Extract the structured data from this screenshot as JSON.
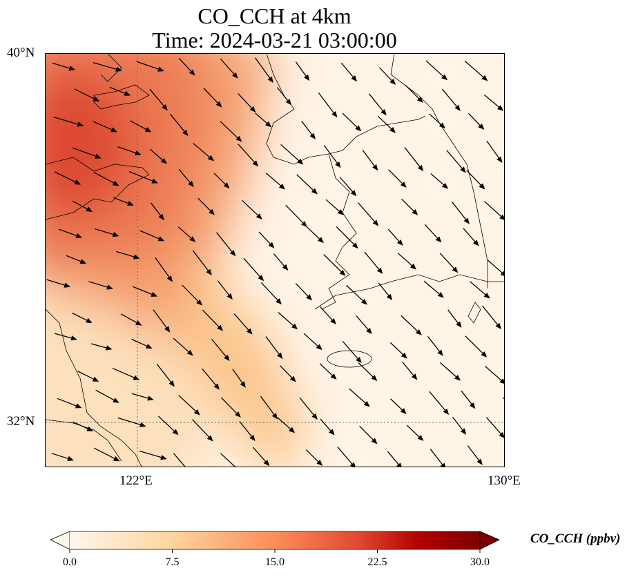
{
  "title": {
    "line1": "CO_CCH at 4km",
    "line2": "Time: 2024-03-21 03:00:00"
  },
  "axes": {
    "lat_labels": [
      "40°N",
      "32°N"
    ],
    "lon_labels": [
      "122°E",
      "130°E"
    ],
    "extent": {
      "lon": [
        120,
        130
      ],
      "lat": [
        31,
        40
      ]
    }
  },
  "colorbar": {
    "label": "CO_CCH (ppbv)",
    "ticks": [
      "0.0",
      "7.5",
      "15.0",
      "22.5",
      "30.0"
    ],
    "range": [
      0,
      30
    ],
    "extend": "both",
    "colors": [
      "#fff7ec",
      "#fdd49e",
      "#fc8d59",
      "#d7301f",
      "#b30000",
      "#7f0000"
    ]
  },
  "chart_data": {
    "type": "heatmap",
    "title": "CO_CCH at 4km / Time: 2024-03-21 03:00:00",
    "variable": "CO_CCH (ppbv)",
    "xlim": [
      120,
      130
    ],
    "ylim": [
      31,
      40
    ],
    "notes_peak": "max ~22 ppbv near 120.5E 38.5N; plume band extending SE toward 125E 31.5N",
    "wind": {
      "direction": "north-westerly (arrows pointing south-east)"
    }
  }
}
